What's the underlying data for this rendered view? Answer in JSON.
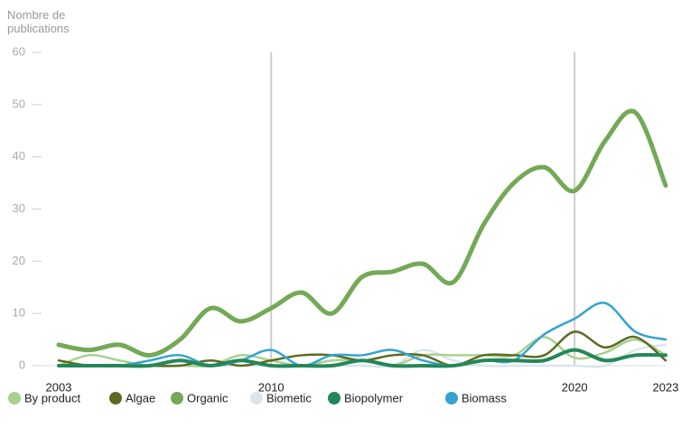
{
  "chart_data": {
    "type": "line",
    "y_label": "Nombre de publications",
    "x": [
      2003,
      2004,
      2005,
      2006,
      2007,
      2008,
      2009,
      2010,
      2011,
      2012,
      2013,
      2014,
      2015,
      2016,
      2017,
      2018,
      2019,
      2020,
      2021,
      2022,
      2023
    ],
    "xlim": [
      2003,
      2023
    ],
    "xticks": [
      2003,
      2010,
      2020,
      2023
    ],
    "ylim": [
      0,
      60
    ],
    "yticks": [
      0,
      10,
      20,
      30,
      40,
      50,
      60
    ],
    "grid": true,
    "legend": "bottom",
    "series": [
      {
        "name": "By product",
        "color": "#a9d18e",
        "values": [
          0,
          2,
          1,
          0,
          0,
          0,
          2,
          1,
          0,
          1,
          1,
          0,
          2,
          2,
          2,
          2,
          5.5,
          1.5,
          2.5,
          5,
          2
        ]
      },
      {
        "name": "Algae",
        "color": "#5c6b22",
        "values": [
          1,
          0,
          0,
          0,
          0,
          1,
          0,
          1,
          2,
          2,
          1,
          2,
          2,
          0,
          2,
          2,
          2,
          6.5,
          3.5,
          5.5,
          1
        ]
      },
      {
        "name": "Organic",
        "color": "#74a957",
        "values": [
          4,
          3,
          4,
          2,
          5,
          11,
          8.5,
          11,
          14,
          10,
          17,
          18,
          19.5,
          16,
          27,
          35,
          38,
          33.5,
          43,
          48.5,
          34.5
        ]
      },
      {
        "name": "Biometic",
        "color": "#dbe5ee",
        "values": [
          0,
          0,
          0,
          0,
          0,
          0,
          0,
          0,
          0,
          0,
          0,
          0,
          3,
          1,
          0,
          0,
          0,
          0,
          0,
          3,
          4
        ]
      },
      {
        "name": "Biopolymer",
        "color": "#23875a",
        "values": [
          0,
          0,
          0,
          0,
          1,
          0,
          1,
          0,
          0,
          0,
          1,
          0,
          0,
          0,
          1,
          1,
          1,
          3,
          1,
          2,
          2
        ]
      },
      {
        "name": "Biomass",
        "color": "#35a3cf",
        "values": [
          0,
          0,
          0,
          1,
          2,
          0,
          1,
          3,
          0,
          2,
          2,
          3,
          1,
          0,
          1,
          1,
          6,
          9,
          12,
          6.5,
          5
        ]
      }
    ]
  }
}
